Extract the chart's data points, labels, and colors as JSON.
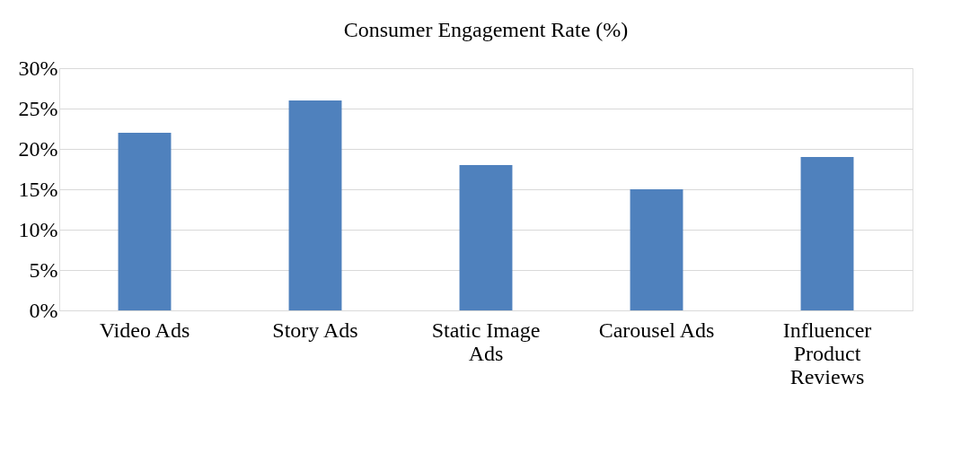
{
  "chart_data": {
    "type": "bar",
    "title": "Consumer Engagement Rate (%)",
    "categories": [
      "Video Ads",
      "Story Ads",
      "Static Image Ads",
      "Carousel Ads",
      "Influencer Product Reviews"
    ],
    "values": [
      22,
      26,
      18,
      15,
      19
    ],
    "color": "#4f81bd",
    "ylim": [
      0,
      30
    ],
    "yticks": [
      {
        "value": 0,
        "label": "0%"
      },
      {
        "value": 5,
        "label": "5%"
      },
      {
        "value": 10,
        "label": "10%"
      },
      {
        "value": 15,
        "label": "15%"
      },
      {
        "value": 20,
        "label": "20%"
      },
      {
        "value": 25,
        "label": "25%"
      },
      {
        "value": 30,
        "label": "30%"
      }
    ],
    "grid": "y"
  }
}
